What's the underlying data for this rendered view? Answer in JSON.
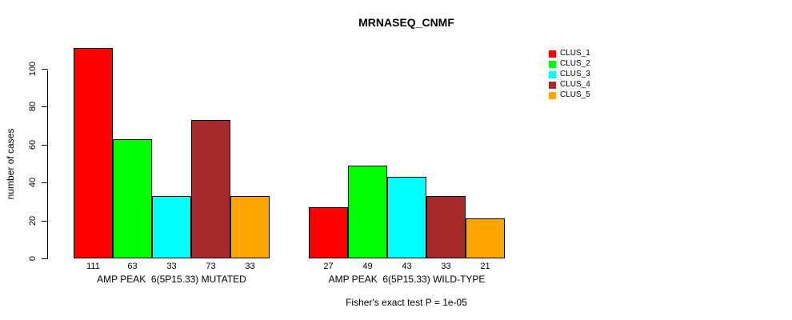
{
  "title": "MRNASEQ_CNMF",
  "footer": "Fisher's exact test P = 1e-05",
  "chart_data": {
    "type": "bar",
    "title": "MRNASEQ_CNMF",
    "xlabel": "",
    "ylabel": "number of cases",
    "ylim": [
      0,
      112
    ],
    "yticks": [
      0,
      20,
      40,
      60,
      80,
      100
    ],
    "grid": false,
    "legend_position": "right",
    "categories": [
      "AMP PEAK  6(5P15.33) MUTATED",
      "AMP PEAK  6(5P15.33) WILD-TYPE"
    ],
    "series": [
      {
        "name": "CLUS_1",
        "color": "#FF0000",
        "values": [
          111,
          27
        ]
      },
      {
        "name": "CLUS_2",
        "color": "#00FF00",
        "values": [
          63,
          49
        ]
      },
      {
        "name": "CLUS_3",
        "color": "#00FFFF",
        "values": [
          33,
          43
        ]
      },
      {
        "name": "CLUS_4",
        "color": "#A52A2A",
        "values": [
          73,
          33
        ]
      },
      {
        "name": "CLUS_5",
        "color": "#FFA500",
        "values": [
          33,
          21
        ]
      }
    ],
    "bar_value_labels": [
      [
        111,
        63,
        33,
        73,
        33
      ],
      [
        27,
        49,
        43,
        33,
        21
      ]
    ],
    "annotation": "Fisher's exact test P = 1e-05"
  }
}
